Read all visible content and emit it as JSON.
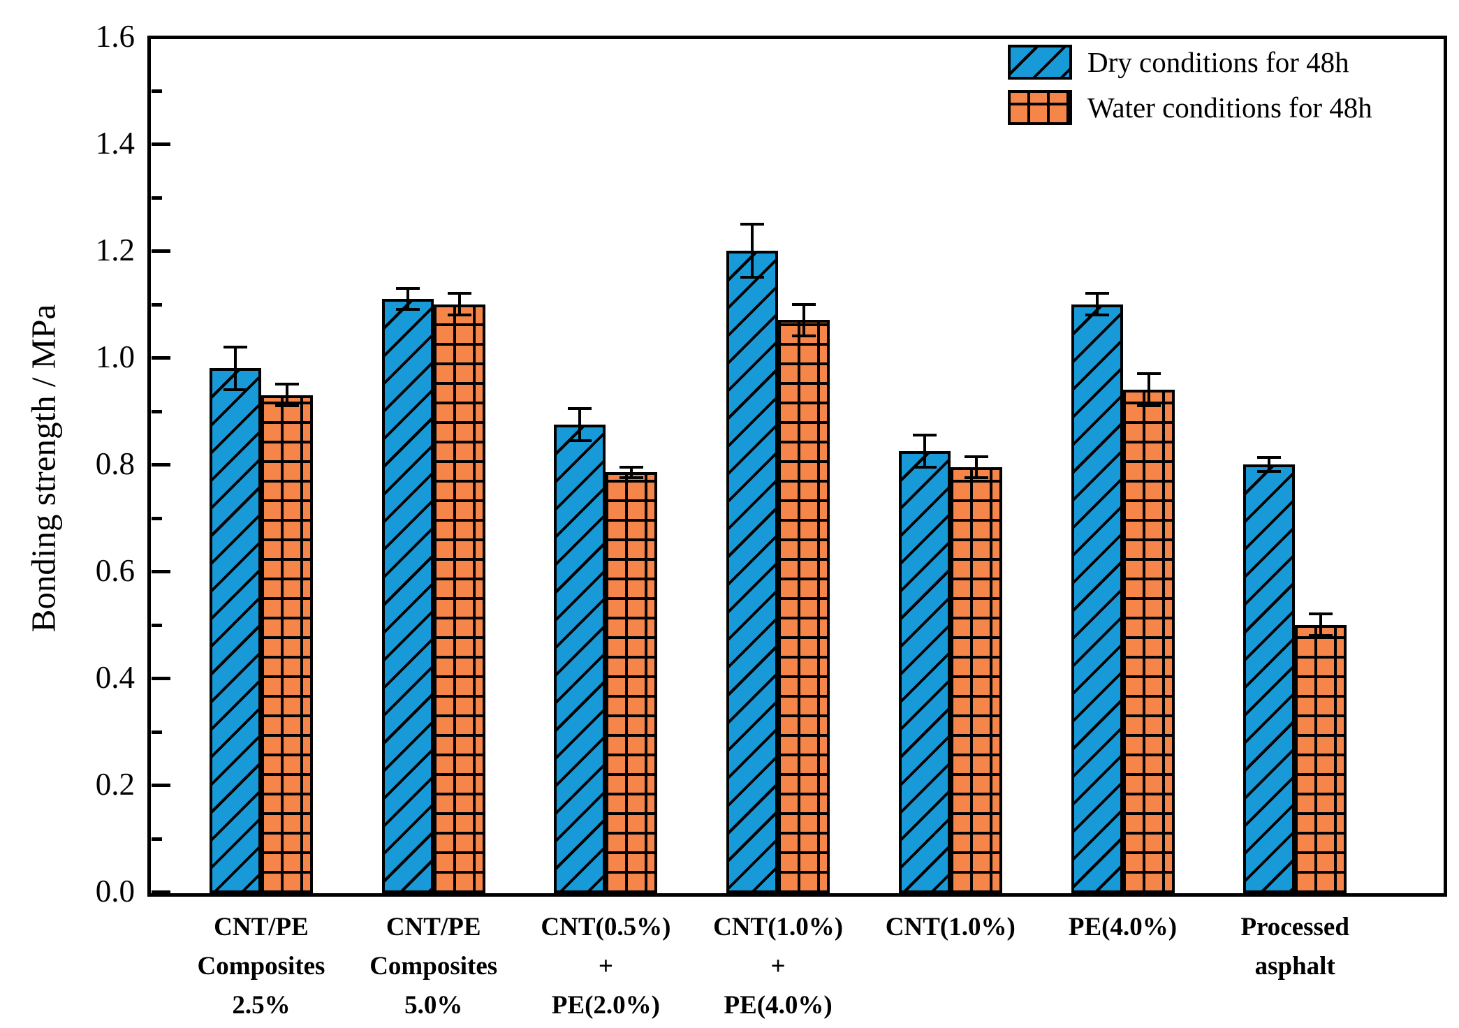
{
  "chart_data": {
    "type": "bar",
    "title": "",
    "xlabel": "",
    "ylabel": "Bonding strength / MPa",
    "ylim": [
      0,
      1.6
    ],
    "ytick_step": 0.2,
    "ytick_minor_step": 0.1,
    "ytick_labels": [
      "0.0",
      "0.2",
      "0.4",
      "0.6",
      "0.8",
      "1.0",
      "1.2",
      "1.4",
      "1.6"
    ],
    "grid": false,
    "legend_position": "top-right",
    "categories": [
      [
        "CNT/PE",
        "Composites",
        "2.5%"
      ],
      [
        "CNT/PE",
        "Composites",
        "5.0%"
      ],
      [
        "CNT(0.5%)",
        "+",
        "PE(2.0%)"
      ],
      [
        "CNT(1.0%)",
        "+",
        "PE(4.0%)"
      ],
      [
        "CNT(1.0%)"
      ],
      [
        "PE(4.0%)"
      ],
      [
        "Processed",
        "asphalt"
      ]
    ],
    "series": [
      {
        "name": "Dry conditions for 48h",
        "color": "#189AD8",
        "hatch": "diagonal",
        "values": [
          0.98,
          1.11,
          0.875,
          1.2,
          0.825,
          1.1,
          0.8
        ],
        "errors": [
          0.04,
          0.02,
          0.03,
          0.05,
          0.03,
          0.02,
          0.013
        ]
      },
      {
        "name": "Water conditions for 48h",
        "color": "#F6854A",
        "hatch": "grid",
        "values": [
          0.93,
          1.1,
          0.785,
          1.07,
          0.795,
          0.94,
          0.5
        ],
        "errors": [
          0.02,
          0.02,
          0.01,
          0.03,
          0.02,
          0.03,
          0.02
        ]
      }
    ],
    "error_bar_color": "#000000",
    "bar_outline_color": "#000000"
  }
}
